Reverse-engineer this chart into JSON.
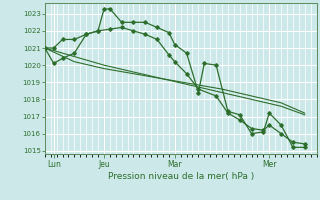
{
  "background_color": "#cce8e8",
  "plot_bg_color": "#cce8e8",
  "grid_color": "#ffffff",
  "line_color": "#2d6e2d",
  "vline_color": "#c8a0a0",
  "xlabel": "Pression niveau de la mer( hPa )",
  "ylim": [
    1014.8,
    1023.6
  ],
  "yticks": [
    1015,
    1016,
    1017,
    1018,
    1019,
    1020,
    1021,
    1022,
    1023
  ],
  "xlim": [
    0,
    46
  ],
  "xtick_positions": [
    1.5,
    10,
    22,
    38
  ],
  "xtick_labels": [
    "Lun",
    "Jeu",
    "Mar",
    "Mer"
  ],
  "vlines_x": [
    1.5,
    10,
    22,
    38
  ],
  "series1_x": [
    0,
    1.5,
    3,
    5,
    7,
    9,
    10,
    11,
    13,
    15,
    17,
    19,
    21,
    22,
    24,
    26,
    27,
    29,
    31,
    33,
    35,
    37,
    38,
    40,
    42,
    44
  ],
  "series1_y": [
    1021.0,
    1021.0,
    1021.5,
    1021.5,
    1021.8,
    1022.0,
    1023.25,
    1023.3,
    1022.5,
    1022.5,
    1022.5,
    1022.2,
    1021.9,
    1021.2,
    1020.7,
    1018.4,
    1020.1,
    1020.0,
    1017.3,
    1017.1,
    1016.0,
    1016.1,
    1017.2,
    1016.5,
    1015.2,
    1015.2
  ],
  "series2_x": [
    0,
    1.5,
    3,
    5,
    7,
    9,
    11,
    13,
    15,
    17,
    19,
    21,
    22,
    24,
    26,
    29,
    31,
    33,
    35,
    37,
    38,
    40,
    42,
    44
  ],
  "series2_y": [
    1021.0,
    1020.1,
    1020.4,
    1020.7,
    1021.8,
    1022.0,
    1022.1,
    1022.2,
    1022.0,
    1021.8,
    1021.5,
    1020.6,
    1020.2,
    1019.5,
    1018.6,
    1018.2,
    1017.2,
    1016.8,
    1016.3,
    1016.2,
    1016.5,
    1016.0,
    1015.5,
    1015.4
  ],
  "series3_x": [
    0,
    5,
    10,
    15,
    20,
    25,
    30,
    35,
    40,
    44
  ],
  "series3_y": [
    1021.0,
    1020.5,
    1020.0,
    1019.6,
    1019.2,
    1018.8,
    1018.4,
    1018.0,
    1017.6,
    1017.1
  ],
  "series4_x": [
    0,
    5,
    10,
    15,
    20,
    25,
    30,
    35,
    40,
    44
  ],
  "series4_y": [
    1021.0,
    1020.2,
    1019.8,
    1019.5,
    1019.2,
    1018.9,
    1018.6,
    1018.2,
    1017.8,
    1017.2
  ]
}
